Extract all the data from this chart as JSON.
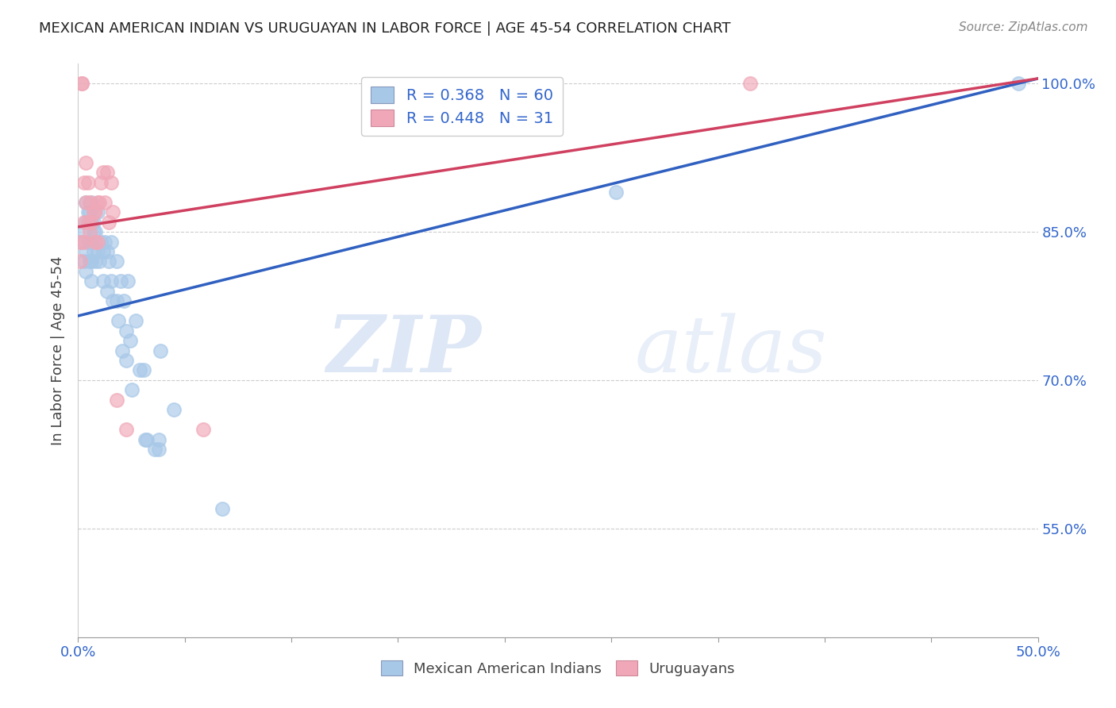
{
  "title": "MEXICAN AMERICAN INDIAN VS URUGUAYAN IN LABOR FORCE | AGE 45-54 CORRELATION CHART",
  "source": "Source: ZipAtlas.com",
  "ylabel": "In Labor Force | Age 45-54",
  "x_min": 0.0,
  "x_max": 0.5,
  "y_min": 0.44,
  "y_max": 1.02,
  "x_ticks": [
    0.0,
    0.05556,
    0.11111,
    0.16667,
    0.22222,
    0.27778,
    0.33333,
    0.38889,
    0.44444,
    0.5
  ],
  "x_tick_labels": [
    "0.0%",
    "",
    "",
    "",
    "",
    "",
    "",
    "",
    "",
    "50.0%"
  ],
  "y_ticks_right": [
    0.55,
    0.7,
    0.85,
    1.0
  ],
  "y_tick_labels_right": [
    "55.0%",
    "70.0%",
    "85.0%",
    "100.0%"
  ],
  "blue_R": 0.368,
  "blue_N": 60,
  "pink_R": 0.448,
  "pink_N": 31,
  "legend_blue": "Mexican American Indians",
  "legend_pink": "Uruguayans",
  "blue_color": "#a8c8e8",
  "pink_color": "#f0a8b8",
  "blue_line_color": "#3060c0",
  "pink_line_color": "#d04060",
  "label_color": "#3366cc",
  "watermark_zip": "ZIP",
  "watermark_atlas": "atlas",
  "blue_trend_x0": 0.0,
  "blue_trend_y0": 0.765,
  "blue_trend_x1": 0.5,
  "blue_trend_y1": 1.005,
  "pink_trend_x0": 0.0,
  "pink_trend_y0": 0.855,
  "pink_trend_x1": 0.5,
  "pink_trend_y1": 1.005,
  "blue_x": [
    0.002,
    0.003,
    0.003,
    0.004,
    0.004,
    0.004,
    0.004,
    0.005,
    0.005,
    0.006,
    0.006,
    0.006,
    0.006,
    0.007,
    0.007,
    0.007,
    0.007,
    0.007,
    0.008,
    0.008,
    0.008,
    0.009,
    0.009,
    0.01,
    0.01,
    0.011,
    0.012,
    0.013,
    0.013,
    0.014,
    0.015,
    0.015,
    0.016,
    0.017,
    0.017,
    0.018,
    0.02,
    0.02,
    0.021,
    0.022,
    0.023,
    0.024,
    0.025,
    0.025,
    0.026,
    0.027,
    0.028,
    0.03,
    0.032,
    0.034,
    0.035,
    0.036,
    0.04,
    0.042,
    0.042,
    0.043,
    0.05,
    0.075,
    0.28,
    0.49
  ],
  "blue_y": [
    0.84,
    0.85,
    0.82,
    0.88,
    0.86,
    0.83,
    0.81,
    0.87,
    0.84,
    0.87,
    0.86,
    0.84,
    0.82,
    0.88,
    0.86,
    0.84,
    0.82,
    0.8,
    0.86,
    0.85,
    0.83,
    0.85,
    0.82,
    0.87,
    0.83,
    0.82,
    0.84,
    0.83,
    0.8,
    0.84,
    0.83,
    0.79,
    0.82,
    0.84,
    0.8,
    0.78,
    0.82,
    0.78,
    0.76,
    0.8,
    0.73,
    0.78,
    0.75,
    0.72,
    0.8,
    0.74,
    0.69,
    0.76,
    0.71,
    0.71,
    0.64,
    0.64,
    0.63,
    0.64,
    0.63,
    0.73,
    0.67,
    0.57,
    0.89,
    1.0
  ],
  "pink_x": [
    0.001,
    0.001,
    0.002,
    0.002,
    0.003,
    0.003,
    0.003,
    0.004,
    0.004,
    0.005,
    0.005,
    0.006,
    0.006,
    0.007,
    0.008,
    0.009,
    0.009,
    0.01,
    0.01,
    0.011,
    0.012,
    0.013,
    0.014,
    0.015,
    0.016,
    0.017,
    0.018,
    0.02,
    0.025,
    0.065,
    0.35
  ],
  "pink_y": [
    0.84,
    0.82,
    1.0,
    1.0,
    0.9,
    0.86,
    0.84,
    0.92,
    0.88,
    0.9,
    0.86,
    0.88,
    0.85,
    0.86,
    0.87,
    0.87,
    0.84,
    0.88,
    0.84,
    0.88,
    0.9,
    0.91,
    0.88,
    0.91,
    0.86,
    0.9,
    0.87,
    0.68,
    0.65,
    0.65,
    1.0
  ]
}
